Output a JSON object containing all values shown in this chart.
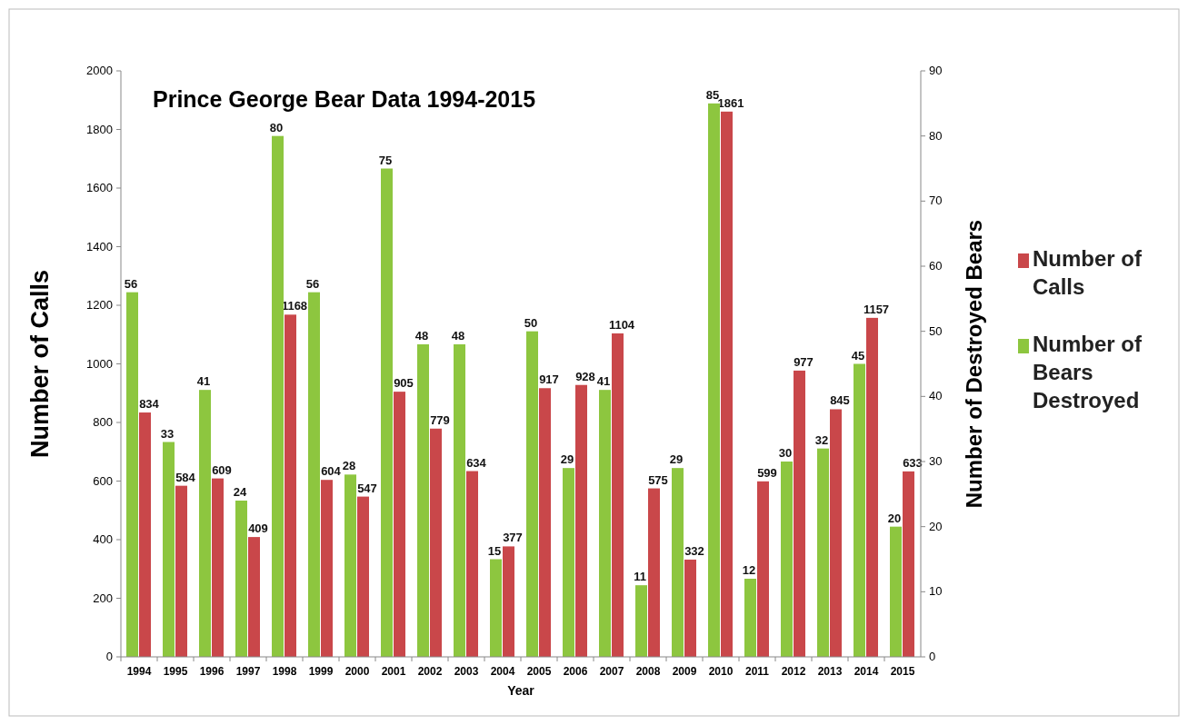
{
  "chart_data": {
    "type": "bar",
    "title": "Prince George Bear Data 1994-2015",
    "xlabel": "Year",
    "ylabel": "Number of Calls",
    "y2label": "Number of Destroyed Bears",
    "categories": [
      "1994",
      "1995",
      "1996",
      "1997",
      "1998",
      "1999",
      "2000",
      "2001",
      "2002",
      "2003",
      "2004",
      "2005",
      "2006",
      "2007",
      "2008",
      "2009",
      "2010",
      "2011",
      "2012",
      "2013",
      "2014",
      "2015"
    ],
    "series": [
      {
        "name": "Number of Calls",
        "color": "#c9474a",
        "values": [
          834,
          584,
          609,
          409,
          1168,
          604,
          547,
          905,
          779,
          634,
          377,
          917,
          928,
          1104,
          575,
          332,
          1861,
          599,
          977,
          845,
          1157,
          633
        ]
      },
      {
        "name": "Number of Bears Destroyed",
        "color": "#8dc63f",
        "axis": "y2",
        "values": [
          56,
          33,
          41,
          24,
          80,
          56,
          28,
          75,
          48,
          48,
          15,
          50,
          29,
          41,
          11,
          29,
          85,
          12,
          30,
          32,
          45,
          20
        ]
      }
    ],
    "ylim": [
      0,
      2000
    ],
    "yticks": [
      0,
      200,
      400,
      600,
      800,
      1000,
      1200,
      1400,
      1600,
      1800,
      2000
    ],
    "y2lim": [
      0,
      90
    ],
    "y2ticks": [
      0,
      10,
      20,
      30,
      40,
      50,
      60,
      70,
      80,
      90
    ],
    "data_labels": true,
    "legend": "right",
    "grid": false
  }
}
